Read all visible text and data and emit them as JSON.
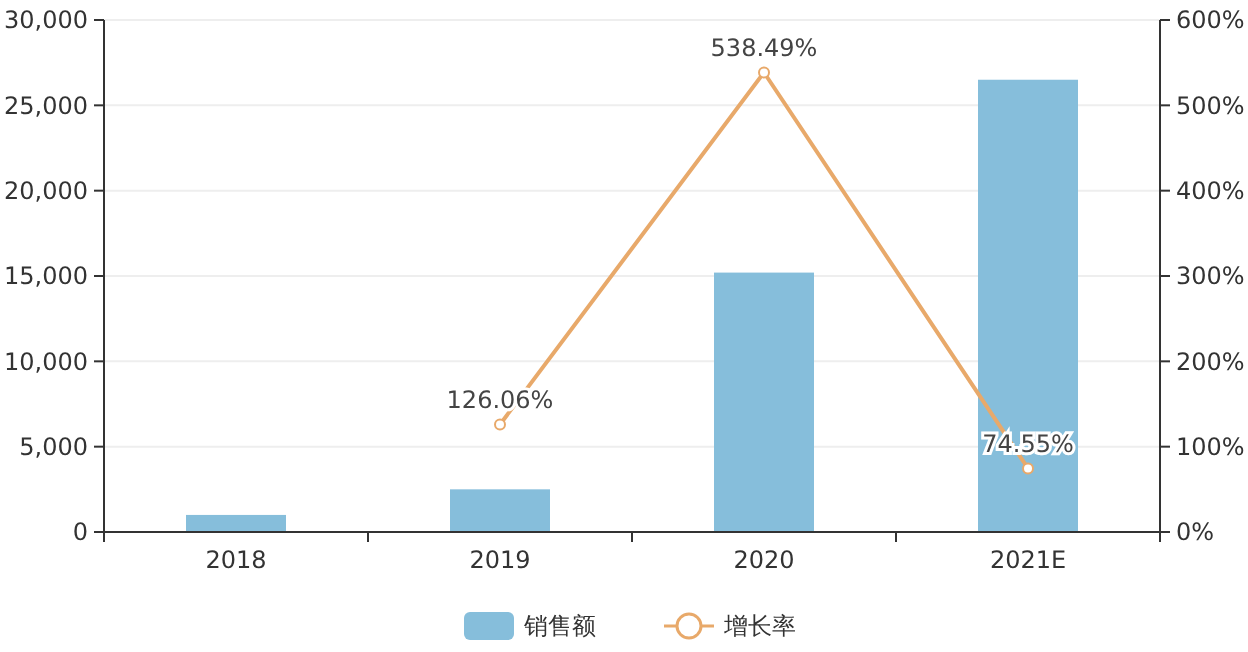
{
  "chart_data": {
    "type": "bar",
    "categories": [
      "2018",
      "2019",
      "2020",
      "2021E"
    ],
    "series": [
      {
        "name": "销售额",
        "color": "#86bedb",
        "values": [
          1000,
          2500,
          15200,
          26500
        ]
      },
      {
        "name": "增长率",
        "type": "line",
        "axis": "y2",
        "color": "#e8a96a",
        "marker": "circle",
        "values": [
          null,
          126.06,
          538.49,
          74.55
        ],
        "value_labels": [
          null,
          "126.06%",
          "538.49%",
          "74.55%"
        ]
      }
    ],
    "ylim": [
      0,
      30000
    ],
    "yticks": [
      {
        "value": 0,
        "label": "0"
      },
      {
        "value": 5000,
        "label": "5,000"
      },
      {
        "value": 10000,
        "label": "10,000"
      },
      {
        "value": 15000,
        "label": "15,000"
      },
      {
        "value": 20000,
        "label": "20,000"
      },
      {
        "value": 25000,
        "label": "25,000"
      },
      {
        "value": 30000,
        "label": "30,000"
      }
    ],
    "y2lim": [
      0,
      600
    ],
    "y2ticks": [
      {
        "value": 0,
        "label": "0%"
      },
      {
        "value": 100,
        "label": "100%"
      },
      {
        "value": 200,
        "label": "200%"
      },
      {
        "value": 300,
        "label": "300%"
      },
      {
        "value": 400,
        "label": "400%"
      },
      {
        "value": 500,
        "label": "500%"
      },
      {
        "value": 600,
        "label": "600%"
      }
    ],
    "grid": "y",
    "legend": "bottom"
  }
}
